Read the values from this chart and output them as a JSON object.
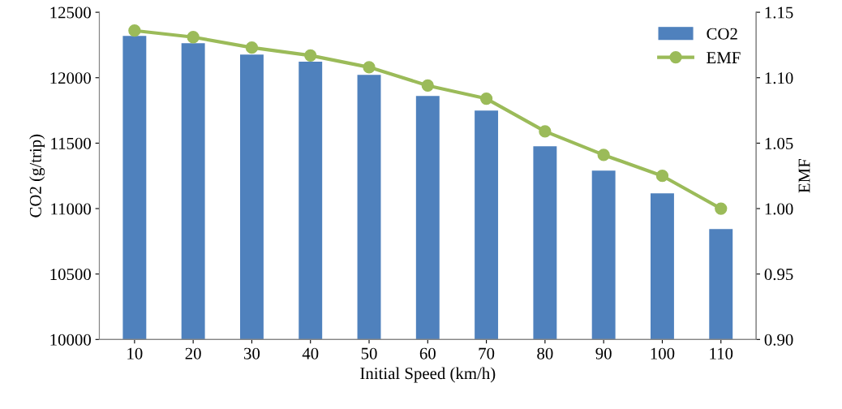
{
  "chart_data": {
    "type": "bar",
    "xlabel": "Initial Speed (km/h)",
    "ylabel": "CO2 (g/trip)",
    "y2label": "EMF",
    "categories": [
      "10",
      "20",
      "30",
      "40",
      "50",
      "60",
      "70",
      "80",
      "90",
      "100",
      "110"
    ],
    "series": [
      {
        "name": "CO2",
        "color": "#4f81bd",
        "values": [
          12320,
          12264,
          12177,
          12122,
          12022,
          11861,
          11749,
          11476,
          11290,
          11117,
          10844
        ]
      },
      {
        "name": "EMF",
        "type": "line",
        "axis": "y2",
        "color": "#9bbb59",
        "marker": "circle",
        "line_style": "solid",
        "values": [
          1.136,
          1.131,
          1.123,
          1.117,
          1.108,
          1.094,
          1.084,
          1.059,
          1.041,
          1.025,
          1.0
        ]
      }
    ],
    "ylim": [
      10000,
      12500
    ],
    "yticks": [
      10000,
      10500,
      11000,
      11500,
      12000,
      12500
    ],
    "y2lim": [
      0.9,
      1.15
    ],
    "y2ticks": [
      {
        "value": 0.9,
        "label": "0.90"
      },
      {
        "value": 0.95,
        "label": "0.95"
      },
      {
        "value": 1.0,
        "label": "1.00"
      },
      {
        "value": 1.05,
        "label": "1.05"
      },
      {
        "value": 1.1,
        "label": "1.10"
      },
      {
        "value": 1.15,
        "label": "1.15"
      }
    ],
    "grid": false,
    "legend": "top right"
  }
}
